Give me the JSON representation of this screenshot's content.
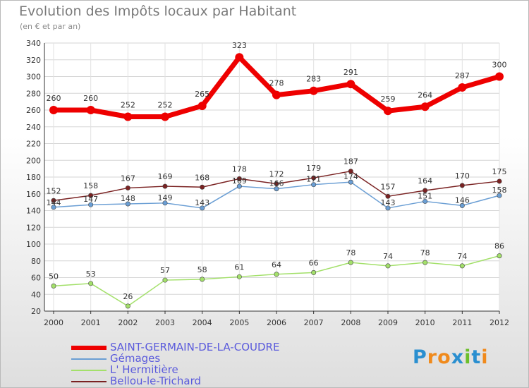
{
  "header": {
    "title": "Evolution des Impôts locaux par Habitant",
    "subtitle": "(en € et par an)"
  },
  "logo": {
    "text": "Proxiti",
    "letters": [
      "P",
      "r",
      "o",
      "x",
      "i",
      "t",
      "i"
    ],
    "colors": [
      "#2a8fd0",
      "#f08a1c",
      "#f08a1c",
      "#2a8fd0",
      "#6cbf2a",
      "#2a8fd0",
      "#f08a1c"
    ]
  },
  "chart_data": {
    "type": "line",
    "title": "Evolution des Impôts locaux par Habitant",
    "subtitle": "(en € et par an)",
    "xlabel": "",
    "ylabel": "",
    "x": [
      "2000",
      "2001",
      "2002",
      "2003",
      "2004",
      "2005",
      "2006",
      "2007",
      "2008",
      "2009",
      "2010",
      "2011",
      "2012"
    ],
    "ylim": [
      20,
      340
    ],
    "yticks": [
      20,
      40,
      60,
      80,
      100,
      120,
      140,
      160,
      180,
      200,
      220,
      240,
      260,
      280,
      300,
      320,
      340
    ],
    "grid": true,
    "series": [
      {
        "name": "SAINT-GERMAIN-DE-LA-COUDRE",
        "color": "#ee0000",
        "width": 7,
        "values": [
          260,
          260,
          252,
          252,
          265,
          323,
          278,
          283,
          291,
          259,
          264,
          287,
          300
        ],
        "labels": [
          "260",
          "260",
          "252",
          "252",
          "265",
          "323",
          "278",
          "283",
          "291",
          "259",
          "264",
          "287",
          "300"
        ]
      },
      {
        "name": "Gémages",
        "color": "#6a9ed4",
        "width": 1.5,
        "values": [
          144,
          147,
          148,
          149,
          143,
          169,
          166,
          171,
          174,
          143,
          151,
          146,
          158
        ],
        "labels": [
          "144",
          "147",
          "148",
          "149",
          "143",
          "169",
          "166",
          "171",
          "174",
          "143",
          "151",
          "146",
          "158"
        ]
      },
      {
        "name": "L' Hermitière",
        "color": "#a3e06a",
        "width": 1.5,
        "values": [
          50,
          53,
          26,
          57,
          58,
          61,
          64,
          66,
          78,
          74,
          78,
          74,
          86
        ],
        "labels": [
          "50",
          "53",
          "26",
          "57",
          "58",
          "61",
          "64",
          "66",
          "78",
          "74",
          "78",
          "74",
          "86"
        ]
      },
      {
        "name": "Bellou-le-Trichard",
        "color": "#7a2222",
        "width": 1.5,
        "values": [
          152,
          158,
          167,
          169,
          168,
          178,
          172,
          179,
          187,
          157,
          164,
          170,
          175
        ],
        "labels": [
          "152",
          "158",
          "167",
          "169",
          "168",
          "178",
          "172",
          "179",
          "187",
          "157",
          "164",
          "170",
          "175"
        ]
      }
    ]
  }
}
